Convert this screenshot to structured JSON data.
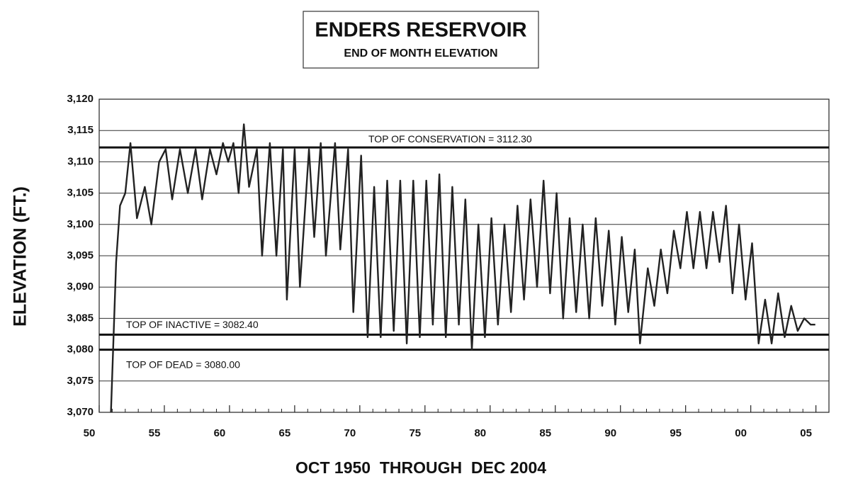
{
  "chart_data": {
    "type": "line",
    "title": "ENDERS RESERVOIR",
    "subtitle": "END OF MONTH ELEVATION",
    "y_label": "ELEVATION (FT.)",
    "x_label": "OCT 1950  THROUGH  DEC 2004",
    "xlim": [
      1950,
      2006
    ],
    "ylim": [
      3070,
      3120
    ],
    "xticks": [
      {
        "value": 1950,
        "label": "50"
      },
      {
        "value": 1955,
        "label": "55"
      },
      {
        "value": 1960,
        "label": "60"
      },
      {
        "value": 1965,
        "label": "65"
      },
      {
        "value": 1970,
        "label": "70"
      },
      {
        "value": 1975,
        "label": "75"
      },
      {
        "value": 1980,
        "label": "80"
      },
      {
        "value": 1985,
        "label": "85"
      },
      {
        "value": 1990,
        "label": "90"
      },
      {
        "value": 1995,
        "label": "95"
      },
      {
        "value": 2000,
        "label": "00"
      },
      {
        "value": 2005,
        "label": "05"
      }
    ],
    "xminorticks": [
      1951,
      1952,
      1953,
      1954,
      1956,
      1957,
      1958,
      1959,
      1961,
      1962,
      1963,
      1964,
      1966,
      1967,
      1968,
      1969,
      1971,
      1972,
      1973,
      1974,
      1976,
      1977,
      1978,
      1979,
      1981,
      1982,
      1983,
      1984,
      1986,
      1987,
      1988,
      1989,
      1991,
      1992,
      1993,
      1994,
      1996,
      1997,
      1998,
      1999,
      2001,
      2002,
      2003,
      2004
    ],
    "yticks": [
      {
        "value": 3070,
        "label": "3,070"
      },
      {
        "value": 3075,
        "label": "3,075"
      },
      {
        "value": 3080,
        "label": "3,080"
      },
      {
        "value": 3085,
        "label": "3,085"
      },
      {
        "value": 3090,
        "label": "3,090"
      },
      {
        "value": 3095,
        "label": "3,095"
      },
      {
        "value": 3100,
        "label": "3,100"
      },
      {
        "value": 3105,
        "label": "3,105"
      },
      {
        "value": 3110,
        "label": "3,110"
      },
      {
        "value": 3115,
        "label": "3,115"
      },
      {
        "value": 3120,
        "label": "3,120"
      }
    ],
    "grid": true,
    "reference_lines": [
      {
        "label": "TOP OF CONSERVATION = 3112.30",
        "value": 3112.3
      },
      {
        "label": "TOP OF INACTIVE = 3082.40",
        "value": 3082.4
      },
      {
        "label": "TOP OF DEAD = 3080.00",
        "value": 3080.0
      }
    ],
    "x": [
      1950.9,
      1951.3,
      1951.6,
      1952.0,
      1952.4,
      1952.9,
      1953.5,
      1954.0,
      1954.6,
      1955.1,
      1955.6,
      1956.2,
      1956.8,
      1957.4,
      1957.9,
      1958.5,
      1959.0,
      1959.5,
      1959.9,
      1960.3,
      1960.7,
      1961.1,
      1961.5,
      1962.1,
      1962.5,
      1963.1,
      1963.6,
      1964.1,
      1964.4,
      1965.0,
      1965.4,
      1966.1,
      1966.5,
      1967.0,
      1967.4,
      1968.1,
      1968.5,
      1969.1,
      1969.5,
      1970.1,
      1970.6,
      1971.1,
      1971.6,
      1972.1,
      1972.6,
      1973.1,
      1973.6,
      1974.1,
      1974.6,
      1975.1,
      1975.6,
      1976.1,
      1976.6,
      1977.1,
      1977.6,
      1978.1,
      1978.6,
      1979.1,
      1979.6,
      1980.1,
      1980.6,
      1981.1,
      1981.6,
      1982.1,
      1982.6,
      1983.1,
      1983.6,
      1984.1,
      1984.6,
      1985.1,
      1985.6,
      1986.1,
      1986.6,
      1987.1,
      1987.6,
      1988.1,
      1988.6,
      1989.1,
      1989.6,
      1990.1,
      1990.6,
      1991.1,
      1991.5,
      1992.1,
      1992.6,
      1993.1,
      1993.6,
      1994.1,
      1994.6,
      1995.1,
      1995.6,
      1996.1,
      1996.6,
      1997.1,
      1997.6,
      1998.1,
      1998.6,
      1999.1,
      1999.6,
      2000.1,
      2000.6,
      2001.1,
      2001.6,
      2002.1,
      2002.6,
      2003.1,
      2003.6,
      2004.1,
      2004.6,
      2004.95
    ],
    "series": [
      {
        "name": "Elevation",
        "color": "#222222",
        "values": [
          3070,
          3094,
          3103,
          3105,
          3113,
          3101,
          3106,
          3100,
          3110,
          3112,
          3104,
          3112,
          3105,
          3112,
          3104,
          3112,
          3108,
          3113,
          3110,
          3113,
          3105,
          3116,
          3106,
          3112,
          3095,
          3113,
          3095,
          3112,
          3088,
          3112,
          3090,
          3112,
          3098,
          3113,
          3095,
          3113,
          3096,
          3112,
          3086,
          3111,
          3082,
          3106,
          3082,
          3107,
          3083,
          3107,
          3081,
          3107,
          3082,
          3107,
          3084,
          3108,
          3082,
          3106,
          3084,
          3104,
          3080,
          3100,
          3082,
          3101,
          3084,
          3100,
          3086,
          3103,
          3088,
          3104,
          3090,
          3107,
          3089,
          3105,
          3085,
          3101,
          3086,
          3100,
          3085,
          3101,
          3087,
          3099,
          3084,
          3098,
          3086,
          3096,
          3081,
          3093,
          3087,
          3096,
          3089,
          3099,
          3093,
          3102,
          3093,
          3102,
          3093,
          3102,
          3094,
          3103,
          3089,
          3100,
          3088,
          3097,
          3081,
          3088,
          3081,
          3089,
          3082,
          3087,
          3083,
          3085,
          3084,
          3084
        ]
      }
    ]
  }
}
